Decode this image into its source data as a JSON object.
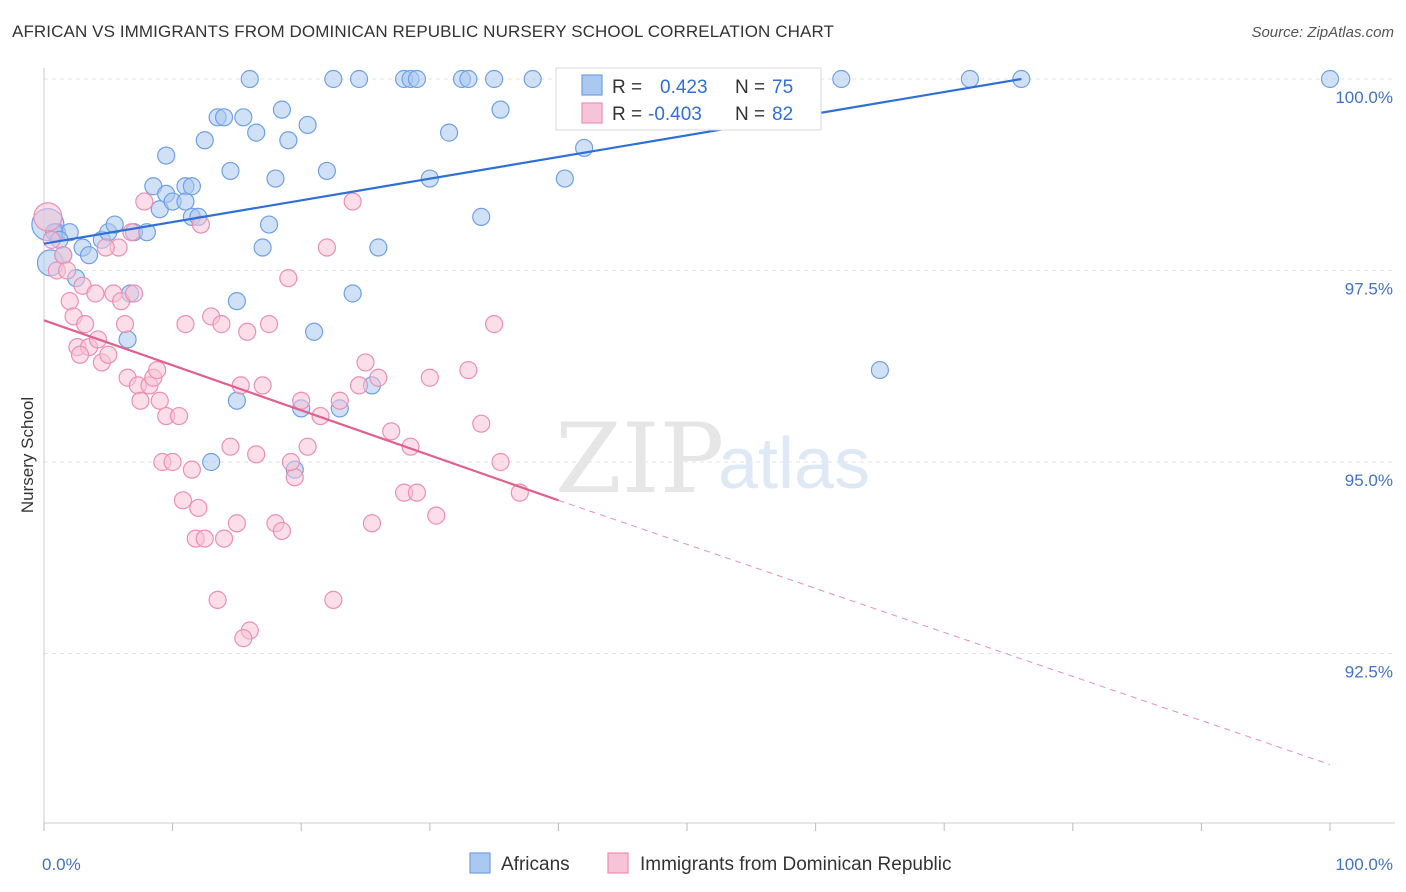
{
  "title": "AFRICAN VS IMMIGRANTS FROM DOMINICAN REPUBLIC NURSERY SCHOOL CORRELATION CHART",
  "source": "Source: ZipAtlas.com",
  "watermark": {
    "zip": "ZIP",
    "atlas": "atlas"
  },
  "chart_data": {
    "type": "scatter",
    "ylabel": "Nursery School",
    "xlim": [
      0,
      100
    ],
    "ylim": [
      90.8,
      100.3
    ],
    "x_tick_labels": [
      {
        "value": 0,
        "label": "0.0%"
      },
      {
        "value": 100,
        "label": "100.0%"
      }
    ],
    "y_ticks": [
      {
        "value": 100.0,
        "label": "100.0%"
      },
      {
        "value": 97.5,
        "label": "97.5%"
      },
      {
        "value": 95.0,
        "label": "95.0%"
      },
      {
        "value": 92.5,
        "label": "92.5%"
      }
    ],
    "grid": true,
    "legend_position": "bottom",
    "series": [
      {
        "name": "Africans",
        "color": "#6fa0e6",
        "fill": "#aac8f0",
        "line_color": "#2f6fd6",
        "stats": {
          "r_label": "R =",
          "r": "0.423",
          "n_label": "N =",
          "n": "75"
        },
        "trend": {
          "x0": 0,
          "y0": 97.85,
          "x1": 76,
          "y1": 100.0
        },
        "points": [
          [
            0.3,
            98.1
          ],
          [
            0.5,
            97.6
          ],
          [
            1,
            98.0
          ],
          [
            1.5,
            97.7
          ],
          [
            2,
            98.0
          ],
          [
            2.5,
            97.4
          ],
          [
            3,
            97.8
          ],
          [
            3.5,
            97.7
          ],
          [
            4.5,
            97.9
          ],
          [
            5,
            98.0
          ],
          [
            5.5,
            98.1
          ],
          [
            6.5,
            96.6
          ],
          [
            6.7,
            97.2
          ],
          [
            7,
            98.0
          ],
          [
            8,
            98.0
          ],
          [
            8.5,
            98.6
          ],
          [
            9,
            98.3
          ],
          [
            9.5,
            98.5
          ],
          [
            9.5,
            99.0
          ],
          [
            10,
            98.4
          ],
          [
            11,
            98.6
          ],
          [
            11,
            98.4
          ],
          [
            11.5,
            98.6
          ],
          [
            11.5,
            98.2
          ],
          [
            12,
            98.2
          ],
          [
            12.5,
            99.2
          ],
          [
            13.5,
            99.5
          ],
          [
            14,
            99.5
          ],
          [
            14.5,
            98.8
          ],
          [
            15,
            97.1
          ],
          [
            15.5,
            99.5
          ],
          [
            16,
            100.0
          ],
          [
            16.5,
            99.3
          ],
          [
            17,
            97.8
          ],
          [
            17.5,
            98.1
          ],
          [
            18,
            98.7
          ],
          [
            18.5,
            99.6
          ],
          [
            19,
            99.2
          ],
          [
            19.5,
            94.9
          ],
          [
            20,
            95.7
          ],
          [
            20.5,
            99.4
          ],
          [
            21,
            96.7
          ],
          [
            22,
            98.8
          ],
          [
            22.5,
            100.0
          ],
          [
            23,
            95.7
          ],
          [
            24,
            97.2
          ],
          [
            24.5,
            100.0
          ],
          [
            25.5,
            96.0
          ],
          [
            26,
            97.8
          ],
          [
            28,
            100.0
          ],
          [
            28.5,
            100.0
          ],
          [
            29,
            100.0
          ],
          [
            30,
            98.7
          ],
          [
            31.5,
            99.3
          ],
          [
            32.5,
            100.0
          ],
          [
            33,
            100.0
          ],
          [
            34,
            98.2
          ],
          [
            35,
            100.0
          ],
          [
            35.5,
            99.6
          ],
          [
            38,
            100.0
          ],
          [
            40.5,
            98.7
          ],
          [
            42,
            99.1
          ],
          [
            45,
            100.0
          ],
          [
            46,
            100.0
          ],
          [
            53,
            100.0
          ],
          [
            58,
            100.0
          ],
          [
            62,
            100.0
          ],
          [
            65,
            96.2
          ],
          [
            72,
            100.0
          ],
          [
            76,
            100.0
          ],
          [
            100,
            100.0
          ],
          [
            0.8,
            98.0
          ],
          [
            1.2,
            97.9
          ],
          [
            15,
            95.8
          ],
          [
            13,
            95.0
          ]
        ],
        "sizes": {
          "0": 16,
          "1": 13
        }
      },
      {
        "name": "Immigrants from Dominican Republic",
        "color": "#ee8fb0",
        "fill": "#f7c3d6",
        "line_color": "#e0608f",
        "stats": {
          "r_label": "R =",
          "r": "-0.403",
          "n_label": "N =",
          "n": "82"
        },
        "trend": {
          "x0": 0,
          "y0": 96.85,
          "x1": 40,
          "y1": 94.5,
          "dash_x1": 100,
          "dash_y1": 91.05
        },
        "points": [
          [
            0.3,
            98.2
          ],
          [
            0.6,
            97.9
          ],
          [
            1,
            97.5
          ],
          [
            1.5,
            97.7
          ],
          [
            2,
            97.1
          ],
          [
            2.3,
            96.9
          ],
          [
            2.6,
            96.5
          ],
          [
            3,
            97.3
          ],
          [
            3.2,
            96.8
          ],
          [
            3.5,
            96.5
          ],
          [
            4,
            97.2
          ],
          [
            4.2,
            96.6
          ],
          [
            4.5,
            96.3
          ],
          [
            5,
            96.4
          ],
          [
            5.4,
            97.2
          ],
          [
            5.8,
            97.8
          ],
          [
            6,
            97.1
          ],
          [
            6.3,
            96.8
          ],
          [
            6.5,
            96.1
          ],
          [
            7,
            97.2
          ],
          [
            7.3,
            96.0
          ],
          [
            7.5,
            95.8
          ],
          [
            7.8,
            98.4
          ],
          [
            8.2,
            96.0
          ],
          [
            8.5,
            96.1
          ],
          [
            9,
            95.8
          ],
          [
            9.2,
            95.0
          ],
          [
            9.5,
            95.6
          ],
          [
            10,
            95.0
          ],
          [
            10.5,
            95.6
          ],
          [
            10.8,
            94.5
          ],
          [
            11,
            96.8
          ],
          [
            11.5,
            94.9
          ],
          [
            11.8,
            94.0
          ],
          [
            12,
            94.4
          ],
          [
            12.5,
            94.0
          ],
          [
            13,
            96.9
          ],
          [
            13.5,
            93.2
          ],
          [
            13.8,
            96.8
          ],
          [
            14,
            94.0
          ],
          [
            14.5,
            95.2
          ],
          [
            15,
            94.2
          ],
          [
            15.3,
            96.0
          ],
          [
            15.8,
            96.7
          ],
          [
            16,
            92.8
          ],
          [
            16.5,
            95.1
          ],
          [
            17,
            96.0
          ],
          [
            17.5,
            96.8
          ],
          [
            18,
            94.2
          ],
          [
            18.5,
            94.1
          ],
          [
            19,
            97.4
          ],
          [
            19.5,
            94.8
          ],
          [
            20,
            95.8
          ],
          [
            20.5,
            95.2
          ],
          [
            21.5,
            95.6
          ],
          [
            22,
            97.8
          ],
          [
            22.5,
            93.2
          ],
          [
            23,
            95.8
          ],
          [
            24,
            98.4
          ],
          [
            24.5,
            96.0
          ],
          [
            25,
            96.3
          ],
          [
            25.5,
            94.2
          ],
          [
            26,
            96.1
          ],
          [
            27,
            95.4
          ],
          [
            28,
            94.6
          ],
          [
            28.5,
            95.2
          ],
          [
            29,
            94.6
          ],
          [
            30,
            96.1
          ],
          [
            30.5,
            94.3
          ],
          [
            33,
            96.2
          ],
          [
            34,
            95.5
          ],
          [
            35,
            96.8
          ],
          [
            35.5,
            95.0
          ],
          [
            37,
            94.6
          ],
          [
            15.5,
            92.7
          ],
          [
            6.8,
            98.0
          ],
          [
            4.8,
            97.8
          ],
          [
            2.8,
            96.4
          ],
          [
            1.8,
            97.5
          ],
          [
            8.8,
            96.2
          ],
          [
            12.2,
            98.1
          ],
          [
            19.2,
            95.0
          ]
        ],
        "sizes": {
          "0": 14
        }
      }
    ]
  }
}
